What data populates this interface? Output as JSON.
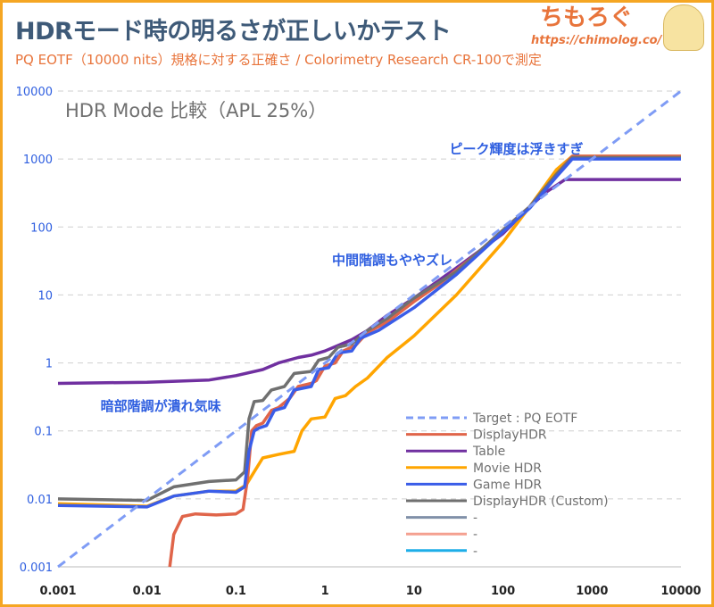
{
  "header": {
    "title": "HDRモード時の明るさが正しいかテスト",
    "subtitle": "PQ EOTF（10000 nits）規格に対する正確さ / Colorimetry Research CR-100で測定",
    "logo_text": "ちもろぐ",
    "logo_url": "https://chimolog.co/"
  },
  "chart_data": {
    "type": "line",
    "title": "HDR Mode 比較（APL 25%）",
    "xscale": "log",
    "yscale": "log",
    "xlim": [
      0.001,
      10000
    ],
    "ylim": [
      0.001,
      10000
    ],
    "x_ticks": [
      "0.001",
      "0.01",
      "0.1",
      "1",
      "10",
      "100",
      "1000",
      "10000"
    ],
    "y_ticks": [
      "0.001",
      "0.01",
      "0.1",
      "1",
      "10",
      "100",
      "1000",
      "10000"
    ],
    "grid": "horizontal-dashed",
    "legend_position": "bottom-right",
    "annotations": [
      {
        "text": "ピーク輝度は浮きすぎ",
        "at": [
          25,
          1200
        ]
      },
      {
        "text": "中間階調もややズレ",
        "at": [
          1.2,
          28
        ]
      },
      {
        "text": "暗部階調が潰れ気味",
        "at": [
          0.003,
          0.2
        ]
      }
    ],
    "series": [
      {
        "name": "Target : PQ EOTF",
        "color": "#7f9cf5",
        "dashed": true,
        "points": [
          [
            0.001,
            0.001
          ],
          [
            10000,
            10000
          ]
        ]
      },
      {
        "name": "DisplayHDR",
        "color": "#e0654a",
        "points": [
          [
            0.018,
            0.001
          ],
          [
            0.02,
            0.003
          ],
          [
            0.025,
            0.0055
          ],
          [
            0.035,
            0.006
          ],
          [
            0.06,
            0.0058
          ],
          [
            0.1,
            0.006
          ],
          [
            0.12,
            0.007
          ],
          [
            0.135,
            0.02
          ],
          [
            0.15,
            0.1
          ],
          [
            0.17,
            0.12
          ],
          [
            0.2,
            0.13
          ],
          [
            0.25,
            0.2
          ],
          [
            0.3,
            0.22
          ],
          [
            0.4,
            0.3
          ],
          [
            0.5,
            0.45
          ],
          [
            0.7,
            0.5
          ],
          [
            0.8,
            0.55
          ],
          [
            1,
            0.9
          ],
          [
            1.3,
            1.0
          ],
          [
            1.6,
            1.5
          ],
          [
            2.2,
            1.8
          ],
          [
            3,
            2.8
          ],
          [
            5,
            4
          ],
          [
            10,
            8
          ],
          [
            20,
            15
          ],
          [
            50,
            40
          ],
          [
            100,
            90
          ],
          [
            200,
            200
          ],
          [
            400,
            600
          ],
          [
            600,
            1100
          ],
          [
            10000,
            1100
          ]
        ]
      },
      {
        "name": "Table",
        "color": "#7030a0",
        "points": [
          [
            0.001,
            0.5
          ],
          [
            0.01,
            0.52
          ],
          [
            0.05,
            0.56
          ],
          [
            0.1,
            0.65
          ],
          [
            0.2,
            0.8
          ],
          [
            0.3,
            1.0
          ],
          [
            0.5,
            1.2
          ],
          [
            0.7,
            1.3
          ],
          [
            1,
            1.5
          ],
          [
            2,
            2.2
          ],
          [
            3,
            3
          ],
          [
            5,
            5
          ],
          [
            10,
            9
          ],
          [
            30,
            25
          ],
          [
            100,
            80
          ],
          [
            200,
            200
          ],
          [
            300,
            320
          ],
          [
            500,
            500
          ],
          [
            10000,
            500
          ]
        ]
      },
      {
        "name": "Movie HDR",
        "color": "#ffa500",
        "points": [
          [
            0.001,
            0.0085
          ],
          [
            0.01,
            0.0078
          ],
          [
            0.02,
            0.011
          ],
          [
            0.05,
            0.013
          ],
          [
            0.1,
            0.013
          ],
          [
            0.13,
            0.016
          ],
          [
            0.16,
            0.025
          ],
          [
            0.2,
            0.04
          ],
          [
            0.3,
            0.045
          ],
          [
            0.45,
            0.05
          ],
          [
            0.55,
            0.1
          ],
          [
            0.7,
            0.15
          ],
          [
            1,
            0.16
          ],
          [
            1.3,
            0.3
          ],
          [
            1.7,
            0.33
          ],
          [
            2.2,
            0.45
          ],
          [
            3,
            0.6
          ],
          [
            5,
            1.2
          ],
          [
            10,
            2.5
          ],
          [
            30,
            10
          ],
          [
            100,
            60
          ],
          [
            200,
            200
          ],
          [
            400,
            700
          ],
          [
            600,
            1100
          ],
          [
            10000,
            1100
          ]
        ]
      },
      {
        "name": "Game HDR",
        "color": "#3a5de8",
        "points": [
          [
            0.001,
            0.008
          ],
          [
            0.01,
            0.0076
          ],
          [
            0.02,
            0.011
          ],
          [
            0.05,
            0.013
          ],
          [
            0.1,
            0.0125
          ],
          [
            0.125,
            0.015
          ],
          [
            0.14,
            0.05
          ],
          [
            0.16,
            0.1
          ],
          [
            0.18,
            0.11
          ],
          [
            0.22,
            0.12
          ],
          [
            0.27,
            0.2
          ],
          [
            0.35,
            0.22
          ],
          [
            0.45,
            0.4
          ],
          [
            0.7,
            0.45
          ],
          [
            0.85,
            0.8
          ],
          [
            1.1,
            0.85
          ],
          [
            1.4,
            1.4
          ],
          [
            2,
            1.5
          ],
          [
            2.5,
            2.3
          ],
          [
            4,
            3
          ],
          [
            10,
            6.5
          ],
          [
            30,
            20
          ],
          [
            100,
            85
          ],
          [
            200,
            190
          ],
          [
            400,
            550
          ],
          [
            600,
            1000
          ],
          [
            10000,
            1000
          ]
        ]
      },
      {
        "name": "DisplayHDR (Custom)",
        "color": "#707070",
        "points": [
          [
            0.001,
            0.01
          ],
          [
            0.01,
            0.0095
          ],
          [
            0.02,
            0.015
          ],
          [
            0.05,
            0.018
          ],
          [
            0.1,
            0.019
          ],
          [
            0.125,
            0.025
          ],
          [
            0.14,
            0.15
          ],
          [
            0.16,
            0.27
          ],
          [
            0.2,
            0.28
          ],
          [
            0.25,
            0.4
          ],
          [
            0.35,
            0.45
          ],
          [
            0.45,
            0.7
          ],
          [
            0.7,
            0.75
          ],
          [
            0.85,
            1.1
          ],
          [
            1.1,
            1.2
          ],
          [
            1.4,
            1.7
          ],
          [
            2,
            1.9
          ],
          [
            3,
            3
          ],
          [
            5,
            4.5
          ],
          [
            10,
            9
          ],
          [
            30,
            22
          ],
          [
            100,
            90
          ],
          [
            200,
            200
          ],
          [
            400,
            600
          ],
          [
            600,
            1050
          ],
          [
            10000,
            1050
          ]
        ]
      },
      {
        "name": "-",
        "color": "#8090a8",
        "points": []
      },
      {
        "name": "-",
        "color": "#f4a090",
        "points": []
      },
      {
        "name": "-",
        "color": "#1eaee8",
        "points": []
      }
    ]
  }
}
